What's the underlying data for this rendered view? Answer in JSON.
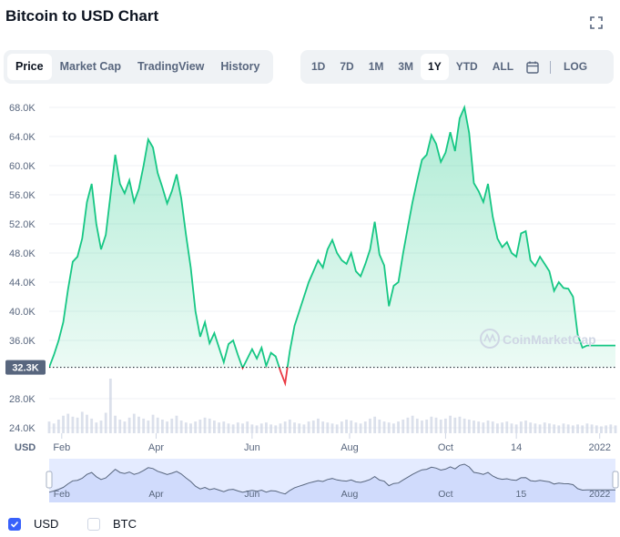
{
  "header": {
    "title": "Bitcoin to USD Chart"
  },
  "tabs": [
    {
      "label": "Price",
      "active": true
    },
    {
      "label": "Market Cap",
      "active": false
    },
    {
      "label": "TradingView",
      "active": false
    },
    {
      "label": "History",
      "active": false
    }
  ],
  "ranges": [
    {
      "label": "1D",
      "active": false
    },
    {
      "label": "7D",
      "active": false
    },
    {
      "label": "1M",
      "active": false
    },
    {
      "label": "3M",
      "active": false
    },
    {
      "label": "1Y",
      "active": true
    },
    {
      "label": "YTD",
      "active": false
    },
    {
      "label": "ALL",
      "active": false
    }
  ],
  "log_label": "LOG",
  "icons": {
    "fullscreen": "fullscreen-icon",
    "calendar": "calendar-icon",
    "check": "check-icon",
    "watermark": "coinmarketcap-logo-icon"
  },
  "watermark": "CoinMarketCap",
  "legend": [
    {
      "label": "USD",
      "checked": true
    },
    {
      "label": "BTC",
      "checked": false
    }
  ],
  "colors": {
    "up": "#16c784",
    "down": "#ea3943",
    "accent": "#3861fb",
    "navigator": "#e4ebff"
  },
  "chart_data": {
    "type": "line",
    "unit_label": "USD",
    "current_value_label": "32.3K",
    "baseline": 32300,
    "y_ticks": [
      "68.0K",
      "64.0K",
      "60.0K",
      "56.0K",
      "52.0K",
      "48.0K",
      "44.0K",
      "40.0K",
      "36.0K",
      "28.0K",
      "24.0K"
    ],
    "y_tick_values": [
      68000,
      64000,
      60000,
      56000,
      52000,
      48000,
      44000,
      40000,
      36000,
      28000,
      24000
    ],
    "ylim": [
      24000,
      68000
    ],
    "x_ticks": [
      "Feb",
      "Apr",
      "Jun",
      "Aug",
      "Oct",
      "14",
      "2022"
    ],
    "x_tick_positions": [
      8,
      68,
      129,
      191,
      252,
      297,
      350
    ],
    "x_range": [
      0,
      360
    ],
    "series": [
      {
        "x": [
          0,
          3,
          6,
          9,
          12,
          15,
          18,
          21,
          24,
          27,
          30,
          33,
          36,
          39,
          42,
          45,
          48,
          51,
          54,
          57,
          60,
          63,
          66,
          69,
          72,
          75,
          78,
          81,
          84,
          87,
          90,
          93,
          96,
          99,
          102,
          105,
          108,
          111,
          114,
          117,
          120,
          123,
          126,
          129,
          132,
          135,
          138,
          141,
          144,
          147,
          150,
          153,
          156,
          159,
          162,
          165,
          168,
          171,
          174,
          177,
          180,
          183,
          186,
          189,
          192,
          195,
          198,
          201,
          204,
          207,
          210,
          213,
          216,
          219,
          222,
          225,
          228,
          231,
          234,
          237,
          240,
          243,
          246,
          249,
          252,
          255,
          258,
          261,
          264,
          267,
          270,
          273,
          276,
          279,
          282,
          285,
          288,
          291,
          294,
          297,
          300,
          303,
          306,
          309,
          312,
          315,
          318,
          321,
          324,
          327,
          330,
          333,
          336,
          339,
          342,
          345,
          348,
          351,
          354,
          357,
          360
        ],
        "values": [
          32300,
          34000,
          36000,
          38500,
          43000,
          46800,
          47500,
          50000,
          55000,
          57500,
          52000,
          48500,
          50500,
          56000,
          61500,
          57500,
          56200,
          58000,
          55000,
          56800,
          60000,
          63600,
          62500,
          59000,
          57000,
          54800,
          56500,
          58800,
          55500,
          50500,
          46000,
          40000,
          36500,
          38500,
          35600,
          37000,
          35000,
          33000,
          35500,
          36000,
          34000,
          32200,
          33500,
          34800,
          33500,
          35000,
          32500,
          34300,
          33800,
          31800,
          30100,
          34500,
          38000,
          40000,
          42000,
          44000,
          45500,
          47000,
          46000,
          48500,
          49800,
          48000,
          47000,
          46500,
          48000,
          45500,
          44800,
          46500,
          48500,
          52300,
          47800,
          46300,
          40700,
          43500,
          44000,
          48000,
          51500,
          55000,
          58000,
          60800,
          61500,
          64200,
          63000,
          60500,
          61800,
          64600,
          62000,
          66500,
          68000,
          64500,
          57600,
          56500,
          55000,
          57500,
          53000,
          50000,
          48800,
          49500,
          48000,
          47500,
          50700,
          51000,
          47000,
          46200,
          47500,
          46500,
          45500,
          42800,
          44000,
          43200,
          43100,
          42000,
          36800,
          35000,
          35300,
          35300,
          35300,
          35300,
          35300,
          35300,
          35300
        ],
        "volume": [
          12,
          10,
          14,
          18,
          20,
          17,
          16,
          22,
          19,
          15,
          11,
          13,
          21,
          56,
          18,
          14,
          12,
          16,
          20,
          17,
          15,
          13,
          19,
          16,
          14,
          12,
          15,
          18,
          13,
          11,
          10,
          12,
          14,
          16,
          15,
          13,
          11,
          12,
          10,
          9,
          11,
          10,
          12,
          9,
          8,
          10,
          11,
          9,
          8,
          10,
          12,
          14,
          11,
          10,
          9,
          12,
          13,
          15,
          12,
          11,
          10,
          9,
          12,
          14,
          13,
          11,
          10,
          12,
          15,
          17,
          14,
          12,
          11,
          10,
          12,
          14,
          16,
          18,
          15,
          13,
          14,
          17,
          16,
          14,
          15,
          18,
          16,
          17,
          15,
          14,
          13,
          12,
          11,
          13,
          12,
          10,
          11,
          12,
          10,
          9,
          12,
          13,
          11,
          10,
          9,
          11,
          10,
          9,
          8,
          10,
          9,
          8,
          9,
          8,
          10,
          9,
          8,
          7,
          8,
          9,
          8
        ]
      }
    ],
    "navigator": {
      "x_ticks": [
        "Feb",
        "Apr",
        "Jun",
        "Aug",
        "Oct",
        "15",
        "2022"
      ],
      "x_tick_positions": [
        8,
        68,
        129,
        191,
        252,
        300,
        350
      ]
    }
  }
}
